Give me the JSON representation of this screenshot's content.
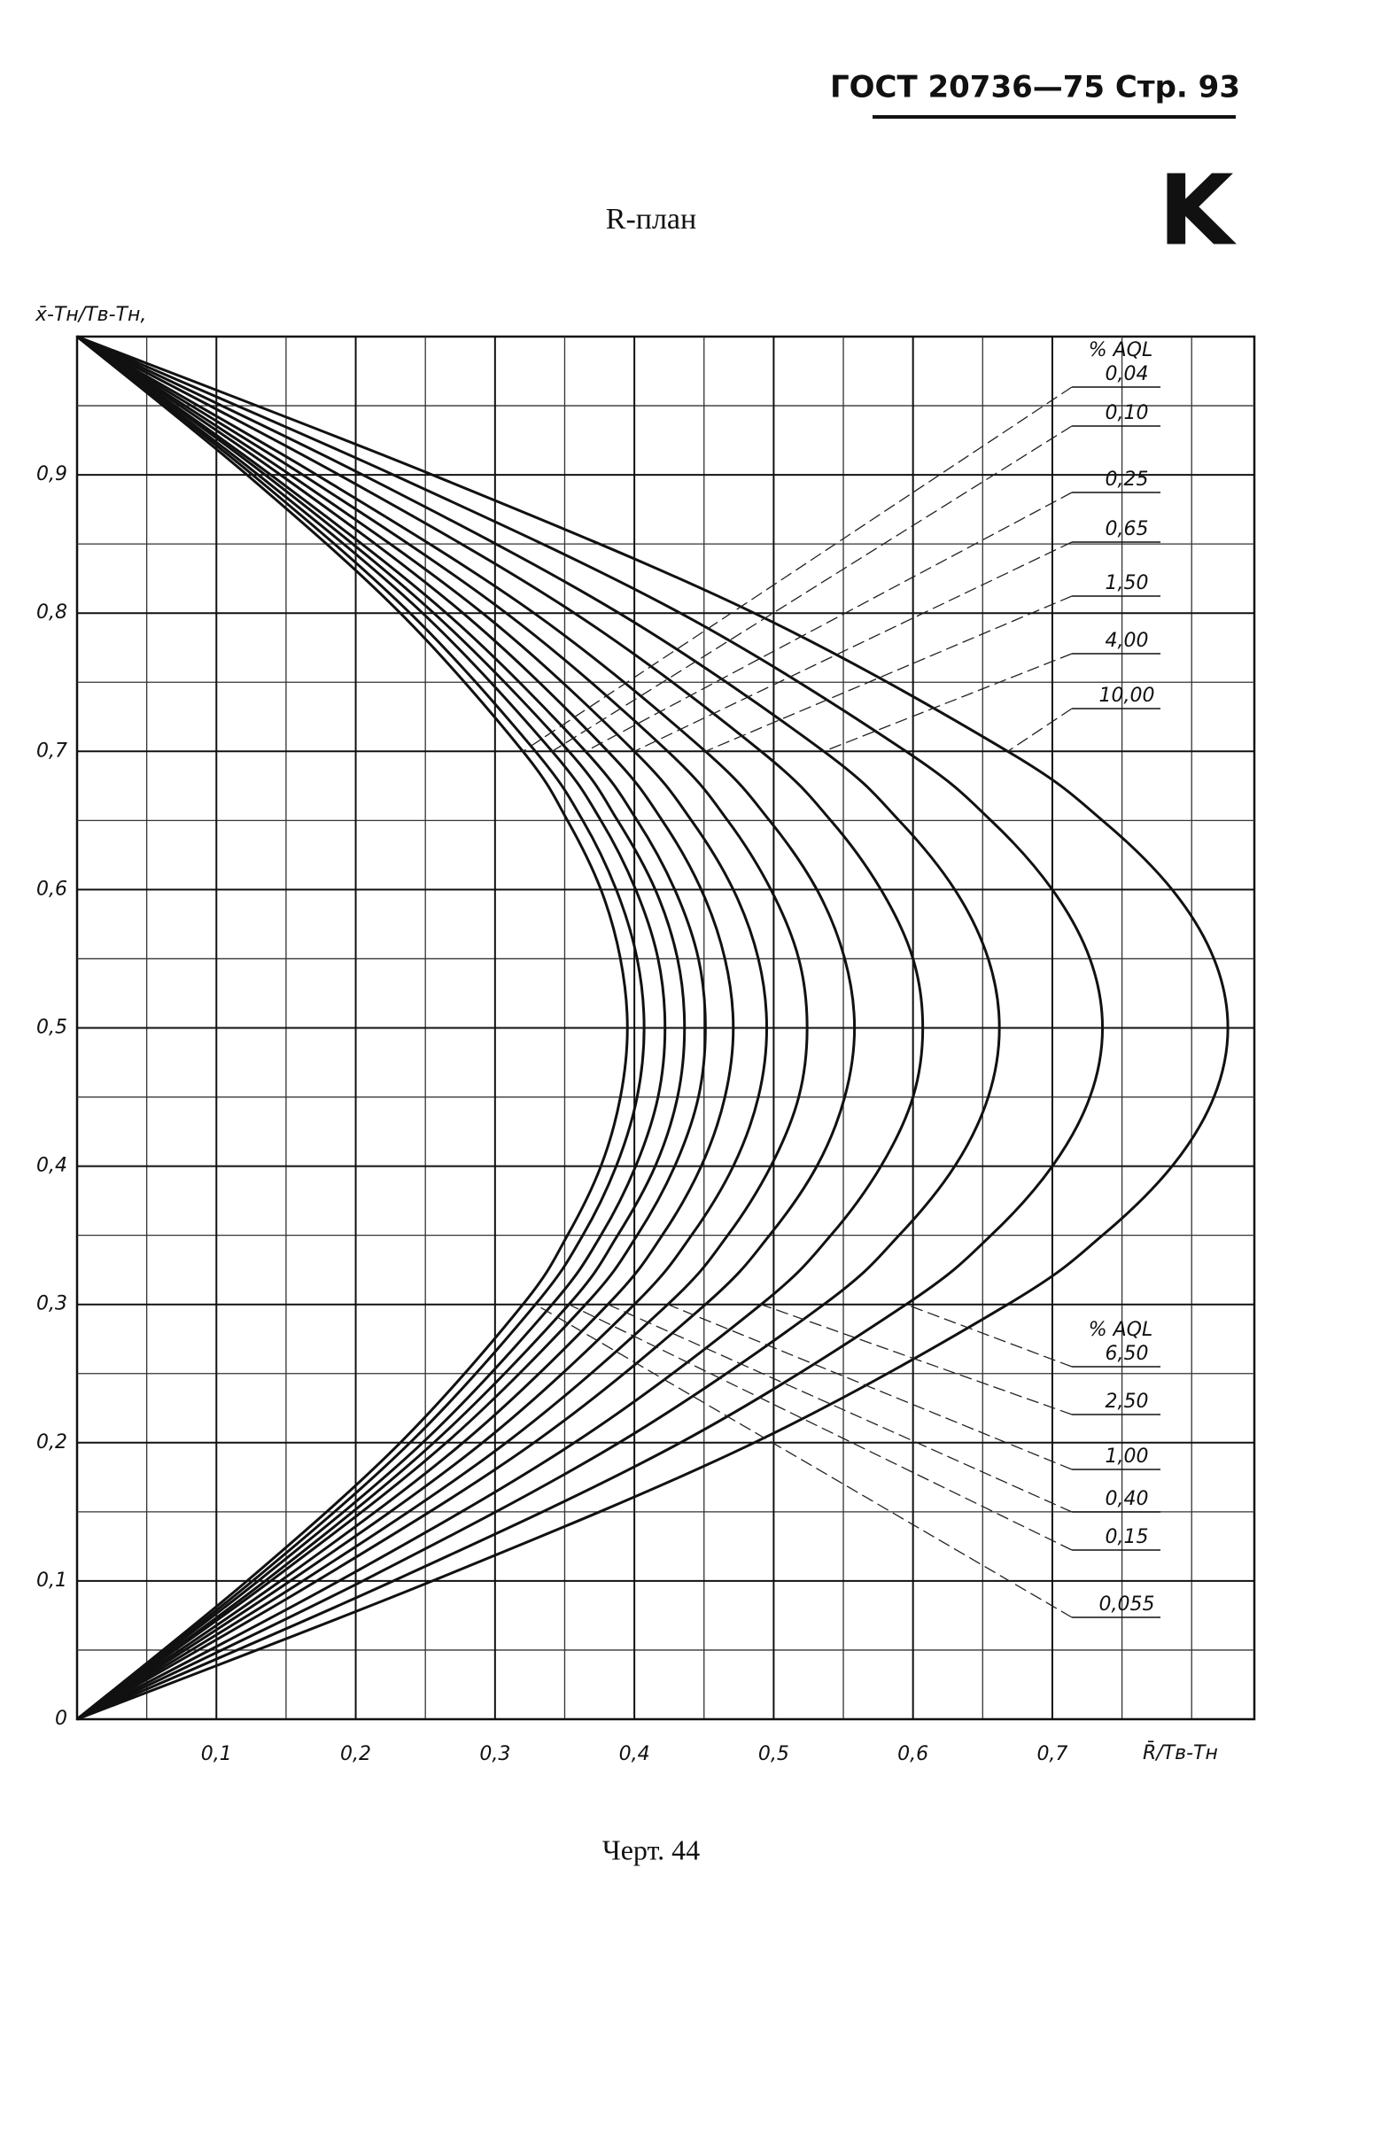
{
  "header": {
    "text": "ГОСТ 20736—75 Стр. 93",
    "mark": "K"
  },
  "caption": "Черт. 44",
  "chart_data": {
    "type": "line",
    "title": "R-план",
    "ylabel": "x̄-Тн/Тв-Тн,",
    "xlabel": "R̄/Тв-Тн",
    "legend_title": "% AQL",
    "xlim": [
      0,
      0.845
    ],
    "ylim": [
      0,
      1
    ],
    "xticks": [
      {
        "value": 0.1,
        "label": "0,1"
      },
      {
        "value": 0.2,
        "label": "0,2"
      },
      {
        "value": 0.3,
        "label": "0,3"
      },
      {
        "value": 0.4,
        "label": "0,4"
      },
      {
        "value": 0.5,
        "label": "0,5"
      },
      {
        "value": 0.6,
        "label": "0,6"
      },
      {
        "value": 0.7,
        "label": "0,7"
      }
    ],
    "yticks": [
      0,
      {
        "value": 0.1,
        "label": "0,1"
      },
      {
        "value": 0.2,
        "label": "0,2"
      },
      {
        "value": 0.3,
        "label": "0,3"
      },
      {
        "value": 0.4,
        "label": "0,4"
      },
      {
        "value": 0.5,
        "label": "0,5"
      },
      {
        "value": 0.6,
        "label": "0,6"
      },
      {
        "value": 0.7,
        "label": "0,7"
      },
      {
        "value": 0.8,
        "label": "0,8"
      },
      {
        "value": 0.9,
        "label": "0,9"
      }
    ],
    "xgrid": [
      0.05,
      0.15,
      0.25,
      0.35,
      0.45,
      0.55,
      0.65,
      0.75,
      0.8
    ],
    "ygrid": [
      0.05,
      0.15,
      0.25,
      0.35,
      0.45,
      0.55,
      0.65,
      0.75,
      0.85,
      0.95
    ],
    "grid": true,
    "y": [
      0,
      0.1,
      0.2,
      0.3,
      0.35,
      0.4,
      0.45,
      0.5,
      0.55,
      0.6,
      0.65,
      0.7,
      0.8,
      0.9,
      1
    ],
    "series": [
      {
        "name": "0,04",
        "color": "#111",
        "legend": "top",
        "x": [
          0,
          0.122,
          0.232,
          0.32,
          0.352,
          0.376,
          0.39,
          0.395,
          0.39,
          0.376,
          0.352,
          0.32,
          0.232,
          0.122,
          0
        ]
      },
      {
        "name": "0,055",
        "color": "#111",
        "legend": "bottom",
        "x": [
          0,
          0.126,
          0.239,
          0.329,
          0.363,
          0.387,
          0.402,
          0.407,
          0.402,
          0.387,
          0.363,
          0.329,
          0.239,
          0.126,
          0
        ]
      },
      {
        "name": "0,10",
        "color": "#111",
        "legend": "top",
        "x": [
          0,
          0.13,
          0.248,
          0.341,
          0.376,
          0.401,
          0.417,
          0.422,
          0.417,
          0.401,
          0.376,
          0.341,
          0.248,
          0.13,
          0
        ]
      },
      {
        "name": "0,15",
        "color": "#111",
        "legend": "bottom",
        "x": [
          0,
          0.135,
          0.256,
          0.353,
          0.388,
          0.415,
          0.431,
          0.436,
          0.431,
          0.415,
          0.388,
          0.353,
          0.256,
          0.135,
          0
        ]
      },
      {
        "name": "0,25",
        "color": "#111",
        "legend": "top",
        "x": [
          0,
          0.139,
          0.265,
          0.365,
          0.402,
          0.429,
          0.446,
          0.451,
          0.446,
          0.429,
          0.402,
          0.365,
          0.265,
          0.139,
          0
        ]
      },
      {
        "name": "0,40",
        "color": "#111",
        "legend": "bottom",
        "x": [
          0,
          0.146,
          0.277,
          0.381,
          0.42,
          0.448,
          0.465,
          0.471,
          0.465,
          0.448,
          0.42,
          0.381,
          0.277,
          0.146,
          0
        ]
      },
      {
        "name": "0,65",
        "color": "#111",
        "legend": "top",
        "x": [
          0,
          0.153,
          0.291,
          0.4,
          0.441,
          0.471,
          0.489,
          0.495,
          0.489,
          0.471,
          0.441,
          0.4,
          0.291,
          0.153,
          0
        ]
      },
      {
        "name": "1,00",
        "color": "#111",
        "legend": "bottom",
        "x": [
          0,
          0.162,
          0.308,
          0.424,
          0.467,
          0.498,
          0.518,
          0.524,
          0.518,
          0.498,
          0.467,
          0.424,
          0.308,
          0.162,
          0
        ]
      },
      {
        "name": "1,50",
        "color": "#111",
        "legend": "top",
        "x": [
          0,
          0.172,
          0.328,
          0.451,
          0.497,
          0.531,
          0.551,
          0.558,
          0.551,
          0.531,
          0.497,
          0.451,
          0.328,
          0.172,
          0
        ]
      },
      {
        "name": "2,50",
        "color": "#111",
        "legend": "bottom",
        "x": [
          0,
          0.188,
          0.357,
          0.491,
          0.541,
          0.577,
          0.6,
          0.607,
          0.6,
          0.577,
          0.541,
          0.491,
          0.357,
          0.188,
          0
        ]
      },
      {
        "name": "4,00",
        "color": "#111",
        "legend": "top",
        "x": [
          0,
          0.205,
          0.389,
          0.536,
          0.59,
          0.63,
          0.654,
          0.662,
          0.654,
          0.63,
          0.59,
          0.536,
          0.389,
          0.205,
          0
        ]
      },
      {
        "name": "6,50",
        "color": "#111",
        "legend": "bottom",
        "x": [
          0,
          0.227,
          0.433,
          0.595,
          0.656,
          0.7,
          0.727,
          0.736,
          0.727,
          0.7,
          0.656,
          0.595,
          0.433,
          0.227,
          0
        ]
      },
      {
        "name": "10,00",
        "color": "#111",
        "legend": "top",
        "x": [
          0,
          0.255,
          0.486,
          0.668,
          0.736,
          0.786,
          0.816,
          0.826,
          0.816,
          0.786,
          0.736,
          0.668,
          0.486,
          0.255,
          0
        ]
      }
    ]
  }
}
